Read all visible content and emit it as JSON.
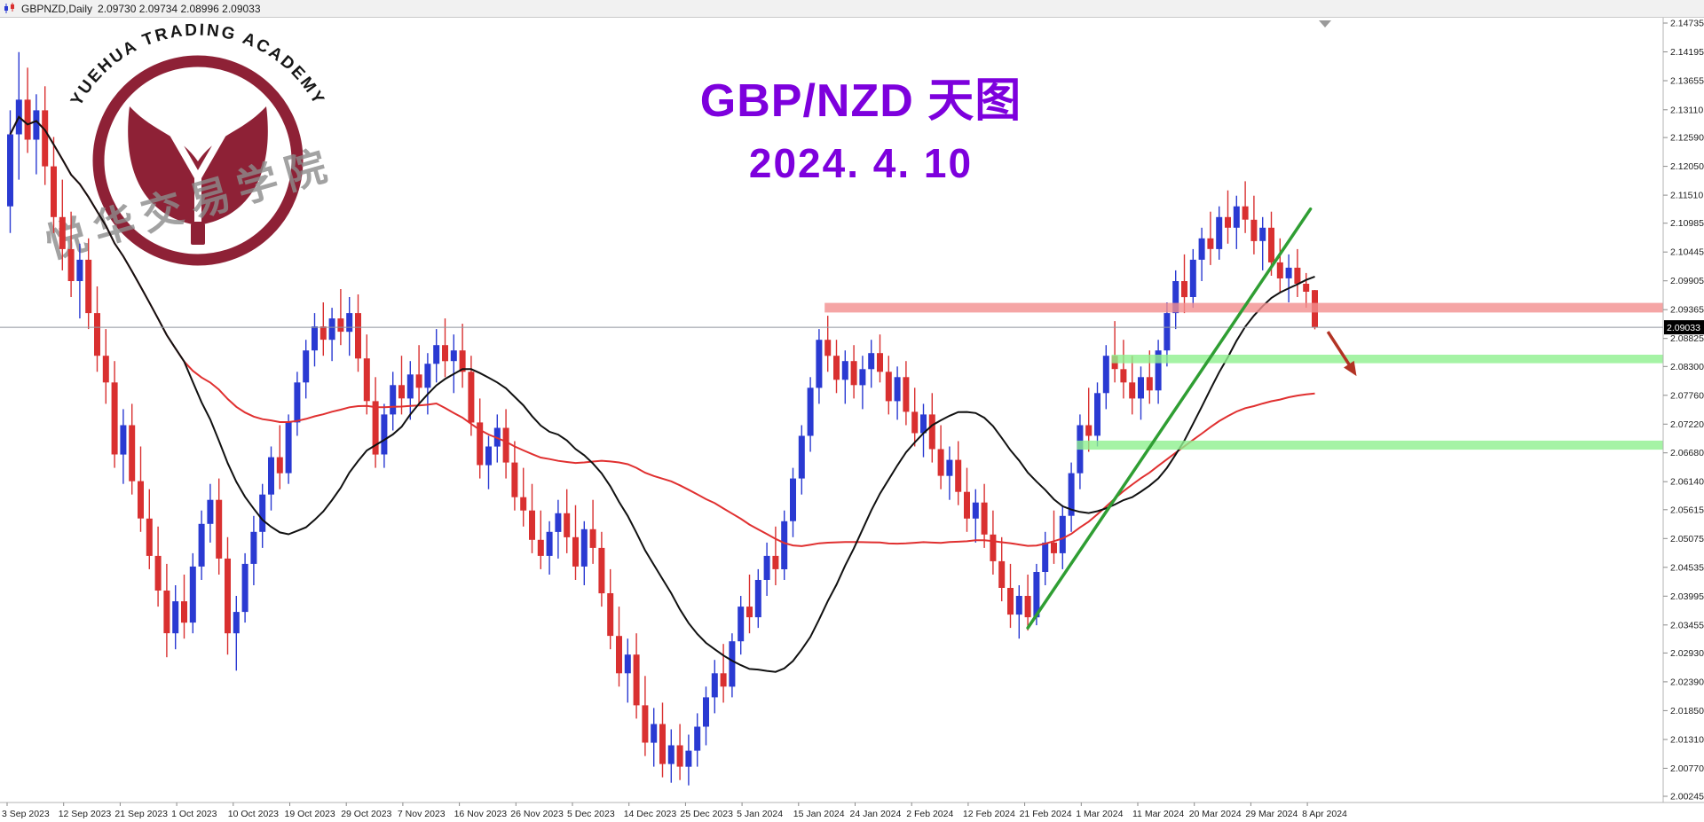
{
  "header": {
    "symbol": "GBPNZD,Daily",
    "quote": "2.09730 2.09734 2.08996 2.09033"
  },
  "watermark": {
    "arc_text": "YUEHUA TRADING ACADEMY",
    "cn_text": "悦华交易学院",
    "logo_color": "#8e2136"
  },
  "chart_data": {
    "type": "candlestick",
    "symbol": "GBPNZD",
    "timeframe": "Daily",
    "title_line1": "GBP/NZD 天图",
    "title_line2": "2024. 4. 10",
    "title_color": "#7d00dd",
    "current_price": "2.09033",
    "current_bar": {
      "open": 2.0973,
      "high": 2.09734,
      "low": 2.08996,
      "close": 2.09033
    },
    "up_color": "#2a3ad2",
    "down_color": "#d93030",
    "price_line_color": "#8f959e",
    "y_axis_labels": [
      "2.14735",
      "2.14195",
      "2.13655",
      "2.13110",
      "2.12590",
      "2.12050",
      "2.11510",
      "2.10985",
      "2.10445",
      "2.09905",
      "2.09365",
      "2.08825",
      "2.08300",
      "2.07760",
      "2.07220",
      "2.06680",
      "2.06140",
      "2.05615",
      "2.05075",
      "2.04535",
      "2.03995",
      "2.03455",
      "2.02930",
      "2.02390",
      "2.01850",
      "2.01310",
      "2.00770",
      "2.00245"
    ],
    "x_axis_labels": [
      "3 Sep 2023",
      "12 Sep 2023",
      "21 Sep 2023",
      "1 Oct 2023",
      "10 Oct 2023",
      "19 Oct 2023",
      "29 Oct 2023",
      "7 Nov 2023",
      "16 Nov 2023",
      "26 Nov 2023",
      "5 Dec 2023",
      "14 Dec 2023",
      "25 Dec 2023",
      "5 Jan 2024",
      "15 Jan 2024",
      "24 Jan 2024",
      "2 Feb 2024",
      "12 Feb 2024",
      "21 Feb 2024",
      "1 Mar 2024",
      "11 Mar 2024",
      "20 Mar 2024",
      "29 Mar 2024",
      "8 Apr 2024"
    ],
    "price_range": {
      "top": 2.14735,
      "bottom": 2.00245
    },
    "candles": [
      [
        2.113,
        2.131,
        2.108,
        2.1265
      ],
      [
        2.1265,
        2.1419,
        2.118,
        2.133
      ],
      [
        2.133,
        2.139,
        2.123,
        2.1255
      ],
      [
        2.1255,
        2.134,
        2.119,
        2.131
      ],
      [
        2.131,
        2.1355,
        2.117,
        2.1205
      ],
      [
        2.1205,
        2.126,
        2.108,
        2.111
      ],
      [
        2.111,
        2.118,
        2.101,
        2.105
      ],
      [
        2.105,
        2.112,
        2.096,
        2.099
      ],
      [
        2.099,
        2.106,
        2.092,
        2.103
      ],
      [
        2.103,
        2.107,
        2.09,
        2.093
      ],
      [
        2.093,
        2.098,
        2.082,
        2.085
      ],
      [
        2.085,
        2.09,
        2.076,
        2.08
      ],
      [
        2.08,
        2.084,
        2.064,
        2.0665
      ],
      [
        2.0665,
        2.075,
        2.061,
        2.072
      ],
      [
        2.072,
        2.076,
        2.059,
        2.0615
      ],
      [
        2.0615,
        2.068,
        2.052,
        2.0545
      ],
      [
        2.0545,
        2.06,
        2.045,
        2.0475
      ],
      [
        2.0475,
        2.053,
        2.038,
        2.041
      ],
      [
        2.041,
        2.046,
        2.0285,
        2.033
      ],
      [
        2.033,
        2.042,
        2.03,
        2.039
      ],
      [
        2.039,
        2.044,
        2.032,
        2.035
      ],
      [
        2.035,
        2.048,
        2.033,
        2.0455
      ],
      [
        2.0455,
        2.056,
        2.043,
        2.0535
      ],
      [
        2.0535,
        2.061,
        2.05,
        2.058
      ],
      [
        2.058,
        2.062,
        2.044,
        2.047
      ],
      [
        2.047,
        2.051,
        2.029,
        2.033
      ],
      [
        2.033,
        2.04,
        2.026,
        2.037
      ],
      [
        2.037,
        2.048,
        2.035,
        2.046
      ],
      [
        2.046,
        2.055,
        2.042,
        2.052
      ],
      [
        2.052,
        2.061,
        2.049,
        2.059
      ],
      [
        2.059,
        2.068,
        2.056,
        2.066
      ],
      [
        2.066,
        2.072,
        2.06,
        2.063
      ],
      [
        2.063,
        2.074,
        2.061,
        2.0725
      ],
      [
        2.0725,
        2.082,
        2.07,
        2.08
      ],
      [
        2.08,
        2.088,
        2.077,
        2.086
      ],
      [
        2.086,
        2.093,
        2.083,
        2.0905
      ],
      [
        2.0905,
        2.095,
        2.085,
        2.088
      ],
      [
        2.088,
        2.094,
        2.084,
        2.092
      ],
      [
        2.092,
        2.0975,
        2.087,
        2.0895
      ],
      [
        2.0895,
        2.096,
        2.085,
        2.093
      ],
      [
        2.093,
        2.0965,
        2.082,
        2.0845
      ],
      [
        2.0845,
        2.089,
        2.074,
        2.0765
      ],
      [
        2.0765,
        2.081,
        2.064,
        2.0665
      ],
      [
        2.0665,
        2.076,
        2.064,
        2.074
      ],
      [
        2.074,
        2.082,
        2.071,
        2.0795
      ],
      [
        2.0795,
        2.085,
        2.074,
        2.077
      ],
      [
        2.077,
        2.084,
        2.073,
        2.0815
      ],
      [
        2.0815,
        2.087,
        2.076,
        2.079
      ],
      [
        2.079,
        2.0855,
        2.074,
        2.0835
      ],
      [
        2.0835,
        2.09,
        2.08,
        2.087
      ],
      [
        2.087,
        2.092,
        2.081,
        2.084
      ],
      [
        2.084,
        2.089,
        2.078,
        2.086
      ],
      [
        2.086,
        2.091,
        2.079,
        2.082
      ],
      [
        2.082,
        2.085,
        2.07,
        2.0725
      ],
      [
        2.0725,
        2.077,
        2.062,
        2.0645
      ],
      [
        2.0645,
        2.07,
        2.06,
        2.068
      ],
      [
        2.068,
        2.074,
        2.065,
        2.0715
      ],
      [
        2.0715,
        2.075,
        2.062,
        2.065
      ],
      [
        2.065,
        2.069,
        2.056,
        2.0585
      ],
      [
        2.0585,
        2.064,
        2.053,
        2.056
      ],
      [
        2.056,
        2.061,
        2.048,
        2.0505
      ],
      [
        2.0505,
        2.056,
        2.045,
        2.0475
      ],
      [
        2.0475,
        2.054,
        2.044,
        2.052
      ],
      [
        2.052,
        2.058,
        2.047,
        2.0555
      ],
      [
        2.0555,
        2.06,
        2.048,
        2.051
      ],
      [
        2.051,
        2.057,
        2.043,
        2.0455
      ],
      [
        2.0455,
        2.054,
        2.042,
        2.0525
      ],
      [
        2.0525,
        2.058,
        2.046,
        2.049
      ],
      [
        2.049,
        2.052,
        2.038,
        2.0405
      ],
      [
        2.0405,
        2.045,
        2.03,
        2.0325
      ],
      [
        2.0325,
        2.038,
        2.023,
        2.0255
      ],
      [
        2.0255,
        2.032,
        2.02,
        2.029
      ],
      [
        2.029,
        2.033,
        2.017,
        2.0195
      ],
      [
        2.0195,
        2.025,
        2.01,
        2.0125
      ],
      [
        2.0125,
        2.019,
        2.008,
        2.016
      ],
      [
        2.016,
        2.02,
        2.006,
        2.0085
      ],
      [
        2.0085,
        2.015,
        2.005,
        2.012
      ],
      [
        2.012,
        2.016,
        2.0055,
        2.008
      ],
      [
        2.008,
        2.014,
        2.0045,
        2.011
      ],
      [
        2.011,
        2.018,
        2.008,
        2.0155
      ],
      [
        2.0155,
        2.023,
        2.012,
        2.021
      ],
      [
        2.021,
        2.028,
        2.018,
        2.0255
      ],
      [
        2.0255,
        2.031,
        2.02,
        2.023
      ],
      [
        2.023,
        2.033,
        2.021,
        2.0315
      ],
      [
        2.0315,
        2.04,
        2.029,
        2.038
      ],
      [
        2.038,
        2.044,
        2.033,
        2.036
      ],
      [
        2.036,
        2.045,
        2.034,
        2.043
      ],
      [
        2.043,
        2.05,
        2.04,
        2.0475
      ],
      [
        2.0475,
        2.053,
        2.042,
        2.045
      ],
      [
        2.045,
        2.056,
        2.043,
        2.054
      ],
      [
        2.054,
        2.064,
        2.051,
        2.062
      ],
      [
        2.062,
        2.072,
        2.059,
        2.07
      ],
      [
        2.07,
        2.081,
        2.067,
        2.079
      ],
      [
        2.079,
        2.09,
        2.076,
        2.088
      ],
      [
        2.088,
        2.0925,
        2.082,
        2.085
      ],
      [
        2.085,
        2.088,
        2.078,
        2.0805
      ],
      [
        2.0805,
        2.086,
        2.076,
        2.084
      ],
      [
        2.084,
        2.087,
        2.077,
        2.0795
      ],
      [
        2.0795,
        2.085,
        2.075,
        2.0825
      ],
      [
        2.0825,
        2.088,
        2.079,
        2.0855
      ],
      [
        2.0855,
        2.089,
        2.08,
        2.082
      ],
      [
        2.082,
        2.085,
        2.074,
        2.0765
      ],
      [
        2.0765,
        2.083,
        2.073,
        2.081
      ],
      [
        2.081,
        2.084,
        2.072,
        2.0745
      ],
      [
        2.0745,
        2.079,
        2.068,
        2.0705
      ],
      [
        2.0705,
        2.076,
        2.066,
        2.074
      ],
      [
        2.074,
        2.078,
        2.065,
        2.0675
      ],
      [
        2.0675,
        2.072,
        2.06,
        2.0625
      ],
      [
        2.0625,
        2.068,
        2.058,
        2.0655
      ],
      [
        2.0655,
        2.069,
        2.057,
        2.0595
      ],
      [
        2.0595,
        2.064,
        2.052,
        2.0545
      ],
      [
        2.0545,
        2.06,
        2.05,
        2.0575
      ],
      [
        2.0575,
        2.061,
        2.049,
        2.0515
      ],
      [
        2.0515,
        2.056,
        2.044,
        2.0465
      ],
      [
        2.0465,
        2.051,
        2.039,
        2.0415
      ],
      [
        2.0415,
        2.046,
        2.034,
        2.0365
      ],
      [
        2.0365,
        2.042,
        2.032,
        2.04
      ],
      [
        2.04,
        2.044,
        2.0335,
        2.036
      ],
      [
        2.036,
        2.046,
        2.0345,
        2.0445
      ],
      [
        2.0445,
        2.052,
        2.042,
        2.05
      ],
      [
        2.05,
        2.056,
        2.046,
        2.048
      ],
      [
        2.048,
        2.057,
        2.045,
        2.055
      ],
      [
        2.055,
        2.065,
        2.052,
        2.063
      ],
      [
        2.063,
        2.074,
        2.06,
        2.072
      ],
      [
        2.072,
        2.079,
        2.067,
        2.07
      ],
      [
        2.07,
        2.08,
        2.068,
        2.078
      ],
      [
        2.078,
        2.087,
        2.075,
        2.085
      ],
      [
        2.085,
        2.0915,
        2.08,
        2.0825
      ],
      [
        2.0825,
        2.088,
        2.077,
        2.08
      ],
      [
        2.08,
        2.085,
        2.074,
        2.077
      ],
      [
        2.077,
        2.083,
        2.073,
        2.081
      ],
      [
        2.081,
        2.086,
        2.076,
        2.0785
      ],
      [
        2.0785,
        2.088,
        2.076,
        2.086
      ],
      [
        2.086,
        2.095,
        2.083,
        2.093
      ],
      [
        2.093,
        2.101,
        2.09,
        2.099
      ],
      [
        2.099,
        2.104,
        2.093,
        2.096
      ],
      [
        2.096,
        2.105,
        2.094,
        2.103
      ],
      [
        2.103,
        2.109,
        2.099,
        2.107
      ],
      [
        2.107,
        2.112,
        2.102,
        2.105
      ],
      [
        2.105,
        2.113,
        2.103,
        2.111
      ],
      [
        2.111,
        2.116,
        2.106,
        2.109
      ],
      [
        2.109,
        2.115,
        2.105,
        2.113
      ],
      [
        2.113,
        2.1177,
        2.108,
        2.1105
      ],
      [
        2.1105,
        2.115,
        2.104,
        2.1065
      ],
      [
        2.1065,
        2.111,
        2.101,
        2.109
      ],
      [
        2.109,
        2.112,
        2.1,
        2.1025
      ],
      [
        2.1025,
        2.107,
        2.097,
        2.0995
      ],
      [
        2.0995,
        2.104,
        2.095,
        2.1015
      ],
      [
        2.1015,
        2.105,
        2.096,
        2.0985
      ],
      [
        2.0985,
        2.1005,
        2.094,
        2.097
      ],
      [
        2.0973,
        2.09734,
        2.08996,
        2.09033
      ]
    ],
    "overlays": {
      "ma_fast": {
        "period": 21,
        "color": "#111111"
      },
      "ma_slow": {
        "period": 50,
        "color": "#e03030"
      },
      "resistance_band": {
        "label": "resistance zone",
        "price_top": 2.0949,
        "price_bottom": 2.0931,
        "start_index": 94,
        "color": "#f28e8e"
      },
      "support_band_1": {
        "label": "support zone",
        "price_top": 2.0852,
        "price_bottom": 2.0836,
        "start_index": 127,
        "color": "#8ef08e"
      },
      "support_band_2": {
        "label": "support zone",
        "price_top": 2.0691,
        "price_bottom": 2.0674,
        "start_index": 123,
        "color": "#8ef08e"
      },
      "trendline": {
        "label": "rising trendline (broken)",
        "from_index": 117,
        "from_price": 2.034,
        "to_index": 149.5,
        "to_price": 2.1125,
        "color": "#2f9e33"
      },
      "arrow": {
        "label": "projected move down",
        "from_index": 151.5,
        "from_price": 2.0895,
        "to_index": 154.8,
        "to_price": 2.0812,
        "color": "#b23324"
      }
    }
  }
}
